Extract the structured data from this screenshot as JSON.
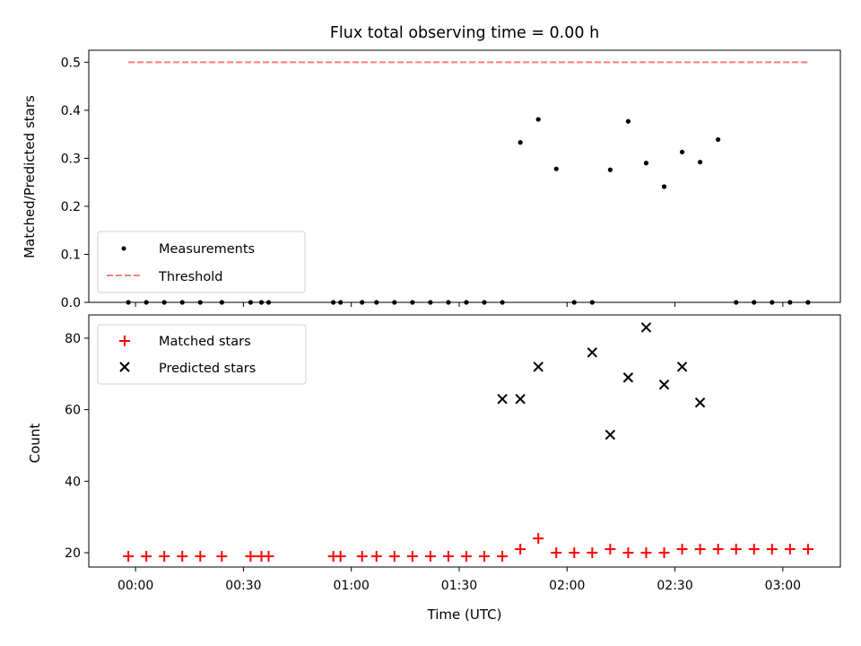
{
  "chart_data": [
    {
      "type": "scatter",
      "title": "Flux total observing time = 0.00 h",
      "ylabel": "Matched/Predicted stars",
      "ylim": [
        0,
        0.525
      ],
      "yticks": [
        "0.0",
        "0.1",
        "0.2",
        "0.3",
        "0.4",
        "0.5"
      ],
      "xlim_minutes": [
        -13,
        196
      ],
      "xticks_minutes": [
        0,
        30,
        60,
        90,
        120,
        150,
        180
      ],
      "legend": {
        "placement": "lower-left",
        "entries": [
          "Measurements",
          "Threshold"
        ]
      },
      "threshold": {
        "name": "Threshold",
        "value": 0.5,
        "x_range_minutes": [
          -2,
          187
        ],
        "color": "#ff7a7a"
      },
      "series": [
        {
          "name": "Measurements",
          "color": "#000000",
          "marker": "dot",
          "x_minutes": [
            -2,
            3,
            8,
            13,
            18,
            24,
            32,
            35,
            37,
            55,
            57,
            63,
            67,
            72,
            77,
            82,
            87,
            92,
            97,
            102,
            107,
            112,
            117,
            122,
            127,
            132,
            137,
            142,
            147,
            152,
            157,
            162,
            167,
            172,
            177,
            182,
            187
          ],
          "values": [
            0,
            0,
            0,
            0,
            0,
            0,
            0,
            0,
            0,
            0,
            0,
            0,
            0,
            0,
            0,
            0,
            0,
            0,
            0,
            0,
            0.333,
            0.381,
            0.278,
            0,
            0,
            0.276,
            0.377,
            0.29,
            0.241,
            0.313,
            0.292,
            0.339,
            0,
            0,
            0,
            0,
            0
          ]
        }
      ]
    },
    {
      "type": "scatter",
      "xlabel": "Time (UTC)",
      "ylabel": "Count",
      "ylim": [
        16,
        86.5
      ],
      "yticks": [
        "20",
        "40",
        "60",
        "80"
      ],
      "xlim_minutes": [
        -13,
        196
      ],
      "xticks": [
        "00:00",
        "00:30",
        "01:00",
        "01:30",
        "02:00",
        "02:30",
        "03:00"
      ],
      "xticks_minutes": [
        0,
        30,
        60,
        90,
        120,
        150,
        180
      ],
      "legend": {
        "placement": "upper-left",
        "entries": [
          "Matched stars",
          "Predicted stars"
        ]
      },
      "series": [
        {
          "name": "Matched stars",
          "color": "#ff0000",
          "marker": "plus",
          "x_minutes": [
            -2,
            3,
            8,
            13,
            18,
            24,
            32,
            35,
            37,
            55,
            57,
            63,
            67,
            72,
            77,
            82,
            87,
            92,
            97,
            102,
            107,
            112,
            117,
            122,
            127,
            132,
            137,
            142,
            147,
            152,
            157,
            162,
            167,
            172,
            177,
            182,
            187
          ],
          "values": [
            19,
            19,
            19,
            19,
            19,
            19,
            19,
            19,
            19,
            19,
            19,
            19,
            19,
            19,
            19,
            19,
            19,
            19,
            19,
            19,
            21,
            24,
            20,
            20,
            20,
            21,
            20,
            20,
            20,
            21,
            21,
            21,
            21,
            21,
            21,
            21,
            21
          ]
        },
        {
          "name": "Predicted stars",
          "color": "#000000",
          "marker": "x",
          "x_minutes": [
            102,
            107,
            112,
            127,
            132,
            137,
            142,
            147,
            152,
            157
          ],
          "values": [
            63,
            63,
            72,
            76,
            53,
            69,
            83,
            67,
            72,
            62
          ]
        }
      ]
    }
  ]
}
